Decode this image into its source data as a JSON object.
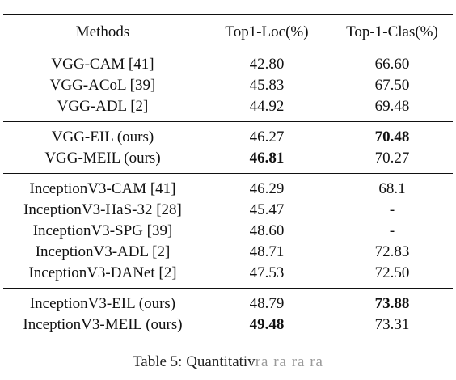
{
  "table": {
    "headers": [
      "Methods",
      "Top1-Loc(%)",
      "Top-1-Clas(%)"
    ],
    "groups": [
      [
        {
          "method": "VGG-CAM [41]",
          "loc": "42.80",
          "clas": "66.60"
        },
        {
          "method": "VGG-ACoL [39]",
          "loc": "45.83",
          "clas": "67.50"
        },
        {
          "method": "VGG-ADL [2]",
          "loc": "44.92",
          "clas": "69.48"
        }
      ],
      [
        {
          "method": "VGG-EIL (ours)",
          "loc": "46.27",
          "clas": "70.48",
          "bold": "clas"
        },
        {
          "method": "VGG-MEIL (ours)",
          "loc": "46.81",
          "clas": "70.27",
          "bold": "loc"
        }
      ],
      [
        {
          "method": "InceptionV3-CAM [41]",
          "loc": "46.29",
          "clas": "68.1"
        },
        {
          "method": "InceptionV3-HaS-32 [28]",
          "loc": "45.47",
          "clas": "-"
        },
        {
          "method": "InceptionV3-SPG [39]",
          "loc": "48.60",
          "clas": "-"
        },
        {
          "method": "InceptionV3-ADL [2]",
          "loc": "48.71",
          "clas": "72.83"
        },
        {
          "method": "InceptionV3-DANet [2]",
          "loc": "47.53",
          "clas": "72.50"
        }
      ],
      [
        {
          "method": "InceptionV3-EIL (ours)",
          "loc": "48.79",
          "clas": "73.88",
          "bold": "clas"
        },
        {
          "method": "InceptionV3-MEIL (ours)",
          "loc": "49.48",
          "clas": "73.31",
          "bold": "loc"
        }
      ]
    ]
  },
  "caption": {
    "label": "Table 5: Quantitativ",
    "faded": "ra ra ra ra"
  }
}
